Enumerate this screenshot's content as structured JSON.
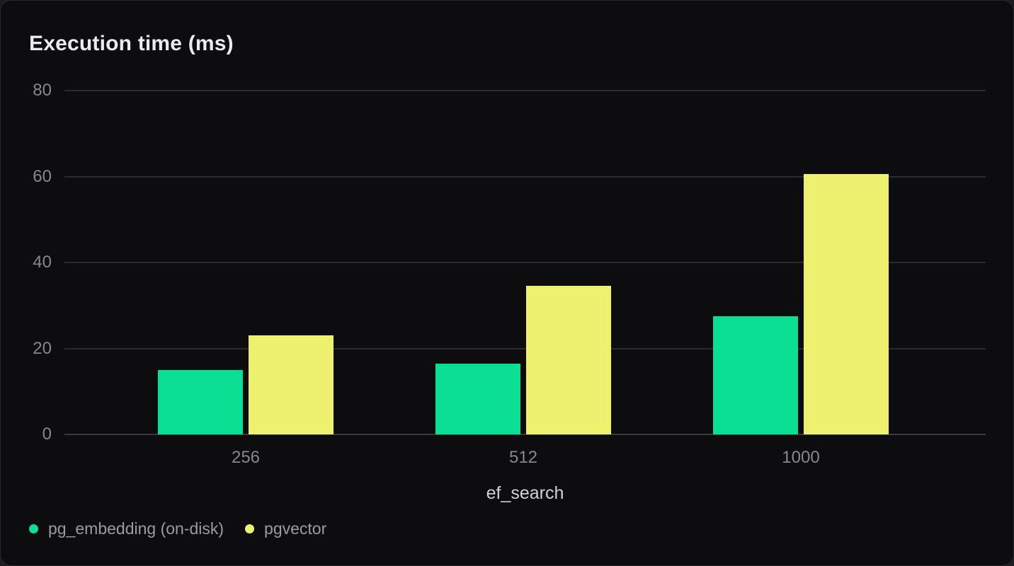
{
  "chart_data": {
    "type": "bar",
    "title": "Execution time (ms)",
    "xlabel": "ef_search",
    "ylabel": "Execution time (ms)",
    "categories": [
      "256",
      "512",
      "1000"
    ],
    "series": [
      {
        "name": "pg_embedding (on-disk)",
        "color": "#0bdf94",
        "values": [
          15,
          16.5,
          27.5
        ]
      },
      {
        "name": "pgvector",
        "color": "#eef06f",
        "values": [
          23,
          34.5,
          60.5
        ]
      }
    ],
    "ylim": [
      0,
      80
    ],
    "yticks": [
      0,
      20,
      40,
      60,
      80
    ],
    "grid": true,
    "legend_position": "bottom-left"
  },
  "theme": {
    "card_background": "#0d0d0f",
    "gridline_color": "#2c2c2f",
    "tick_text_color": "#87878d",
    "title_color": "#ebebee",
    "axis_label_color": "#d2d2d6",
    "legend_text_color": "#9b9ba2"
  }
}
